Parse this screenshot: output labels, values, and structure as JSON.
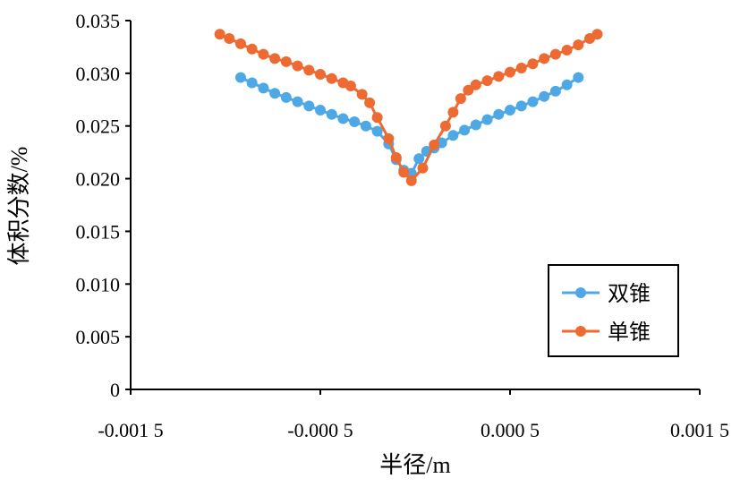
{
  "chart_data": {
    "type": "line",
    "xlabel": "半径/m",
    "ylabel": "体积分数/%",
    "xlim": [
      -0.0015,
      0.0015
    ],
    "ylim": [
      0,
      0.035
    ],
    "x_ticks": [
      {
        "value": -0.0015,
        "label": "-0.001 5"
      },
      {
        "value": -0.0005,
        "label": "-0.000 5"
      },
      {
        "value": 0.0005,
        "label": "0.000 5"
      },
      {
        "value": 0.0015,
        "label": "0.001 5"
      }
    ],
    "y_ticks": [
      {
        "value": 0,
        "label": "0"
      },
      {
        "value": 0.005,
        "label": "0.005"
      },
      {
        "value": 0.01,
        "label": "0.010"
      },
      {
        "value": 0.015,
        "label": "0.015"
      },
      {
        "value": 0.02,
        "label": "0.020"
      },
      {
        "value": 0.025,
        "label": "0.025"
      },
      {
        "value": 0.03,
        "label": "0.030"
      },
      {
        "value": 0.035,
        "label": "0.035"
      }
    ],
    "grid": false,
    "legend_position": "bottom-right",
    "series": [
      {
        "name": "双锥",
        "color": "#4fa8e6",
        "x": [
          -0.00092,
          -0.00086,
          -0.0008,
          -0.00074,
          -0.00068,
          -0.00062,
          -0.00056,
          -0.0005,
          -0.00044,
          -0.00038,
          -0.00032,
          -0.00026,
          -0.0002,
          -0.00014,
          -0.0001,
          -6e-05,
          -2e-05,
          2e-05,
          6e-05,
          0.0001,
          0.00014,
          0.0002,
          0.00026,
          0.00032,
          0.00038,
          0.00044,
          0.0005,
          0.00056,
          0.00062,
          0.00068,
          0.00074,
          0.0008,
          0.00086
        ],
        "y": [
          0.0296,
          0.0291,
          0.0286,
          0.0281,
          0.0277,
          0.0273,
          0.0269,
          0.0265,
          0.0261,
          0.0257,
          0.0254,
          0.025,
          0.0245,
          0.0233,
          0.0218,
          0.0208,
          0.0205,
          0.0219,
          0.0226,
          0.0229,
          0.0234,
          0.0241,
          0.0246,
          0.0251,
          0.0256,
          0.0261,
          0.0265,
          0.0269,
          0.0273,
          0.0278,
          0.0283,
          0.0289,
          0.0296
        ]
      },
      {
        "name": "单锥",
        "color": "#ee6a33",
        "x": [
          -0.00103,
          -0.00098,
          -0.00092,
          -0.00086,
          -0.0008,
          -0.00074,
          -0.00068,
          -0.00062,
          -0.00056,
          -0.0005,
          -0.00044,
          -0.00038,
          -0.00034,
          -0.00028,
          -0.00024,
          -0.0002,
          -0.00014,
          -0.0001,
          -6e-05,
          -2e-05,
          4e-05,
          0.0001,
          0.00016,
          0.0002,
          0.00024,
          0.00028,
          0.00032,
          0.00038,
          0.00044,
          0.0005,
          0.00056,
          0.00062,
          0.00068,
          0.00074,
          0.0008,
          0.00086,
          0.00092,
          0.00096
        ],
        "y": [
          0.0337,
          0.0333,
          0.0328,
          0.0323,
          0.0318,
          0.0314,
          0.0311,
          0.0307,
          0.0303,
          0.0299,
          0.0295,
          0.0291,
          0.0288,
          0.028,
          0.0272,
          0.0258,
          0.0238,
          0.022,
          0.0206,
          0.0198,
          0.021,
          0.0232,
          0.025,
          0.0263,
          0.0276,
          0.0284,
          0.0289,
          0.0293,
          0.0297,
          0.0301,
          0.0305,
          0.0309,
          0.0314,
          0.0318,
          0.0322,
          0.0327,
          0.0333,
          0.0337
        ]
      }
    ]
  }
}
